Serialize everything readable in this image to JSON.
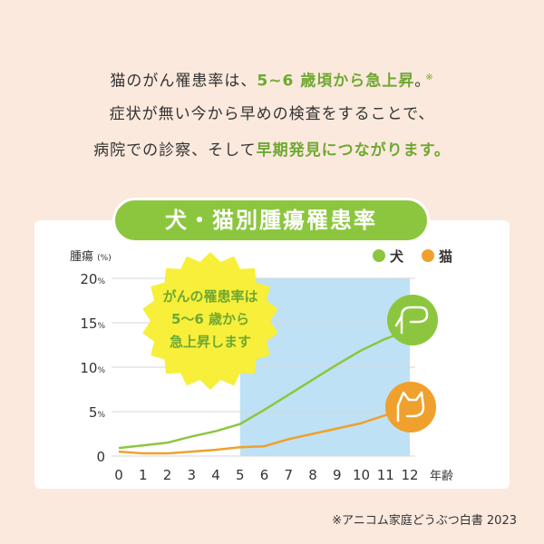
{
  "intro": {
    "line1_a": "猫のがん罹患率は、",
    "line1_hl": "5~6 歳頃から急上昇",
    "line1_b": "。",
    "line1_note": "※",
    "line2": "症状が無い今から早めの検査をすることで、",
    "line3_a": "病院での診察、そして",
    "line3_hl": "早期発見につながります。"
  },
  "chart_data": {
    "type": "line",
    "title": "犬・猫別腫瘍罹患率",
    "ylabel": "腫瘍",
    "ylabel_unit": "(%)",
    "xlabel": "年齢",
    "x": [
      0,
      1,
      2,
      3,
      4,
      5,
      6,
      7,
      8,
      9,
      10,
      11,
      12
    ],
    "x_ticks": [
      "0",
      "1",
      "2",
      "3",
      "4",
      "5",
      "6",
      "7",
      "8",
      "9",
      "10",
      "11",
      "12"
    ],
    "ylim": [
      0,
      20
    ],
    "y_ticks": [
      0,
      5,
      10,
      15,
      20
    ],
    "y_tick_labels": [
      "0",
      "5%",
      "10%",
      "15%",
      "20%"
    ],
    "series": [
      {
        "name": "犬",
        "color": "#8cc63f",
        "icon": "dog-icon",
        "values": [
          0.9,
          1.2,
          1.5,
          2.2,
          2.8,
          3.6,
          5.2,
          6.9,
          8.6,
          10.3,
          11.9,
          13.2,
          14.2
        ]
      },
      {
        "name": "猫",
        "color": "#f0a02c",
        "icon": "cat-icon",
        "values": [
          0.5,
          0.3,
          0.3,
          0.5,
          0.7,
          1.0,
          1.1,
          1.9,
          2.5,
          3.1,
          3.7,
          4.6,
          5.5
        ]
      }
    ],
    "highlight_range": [
      5,
      12
    ],
    "highlight_color": "#bfe1f5",
    "grid": true,
    "legend_position": "top-right",
    "callout": {
      "lines": [
        "がんの罹患率は",
        "5〜6 歳から",
        "急上昇します"
      ],
      "text_color": "#6fa832",
      "fill": "#f7ef3a"
    }
  },
  "source": "※アニコム家庭どうぶつ白書 2023"
}
